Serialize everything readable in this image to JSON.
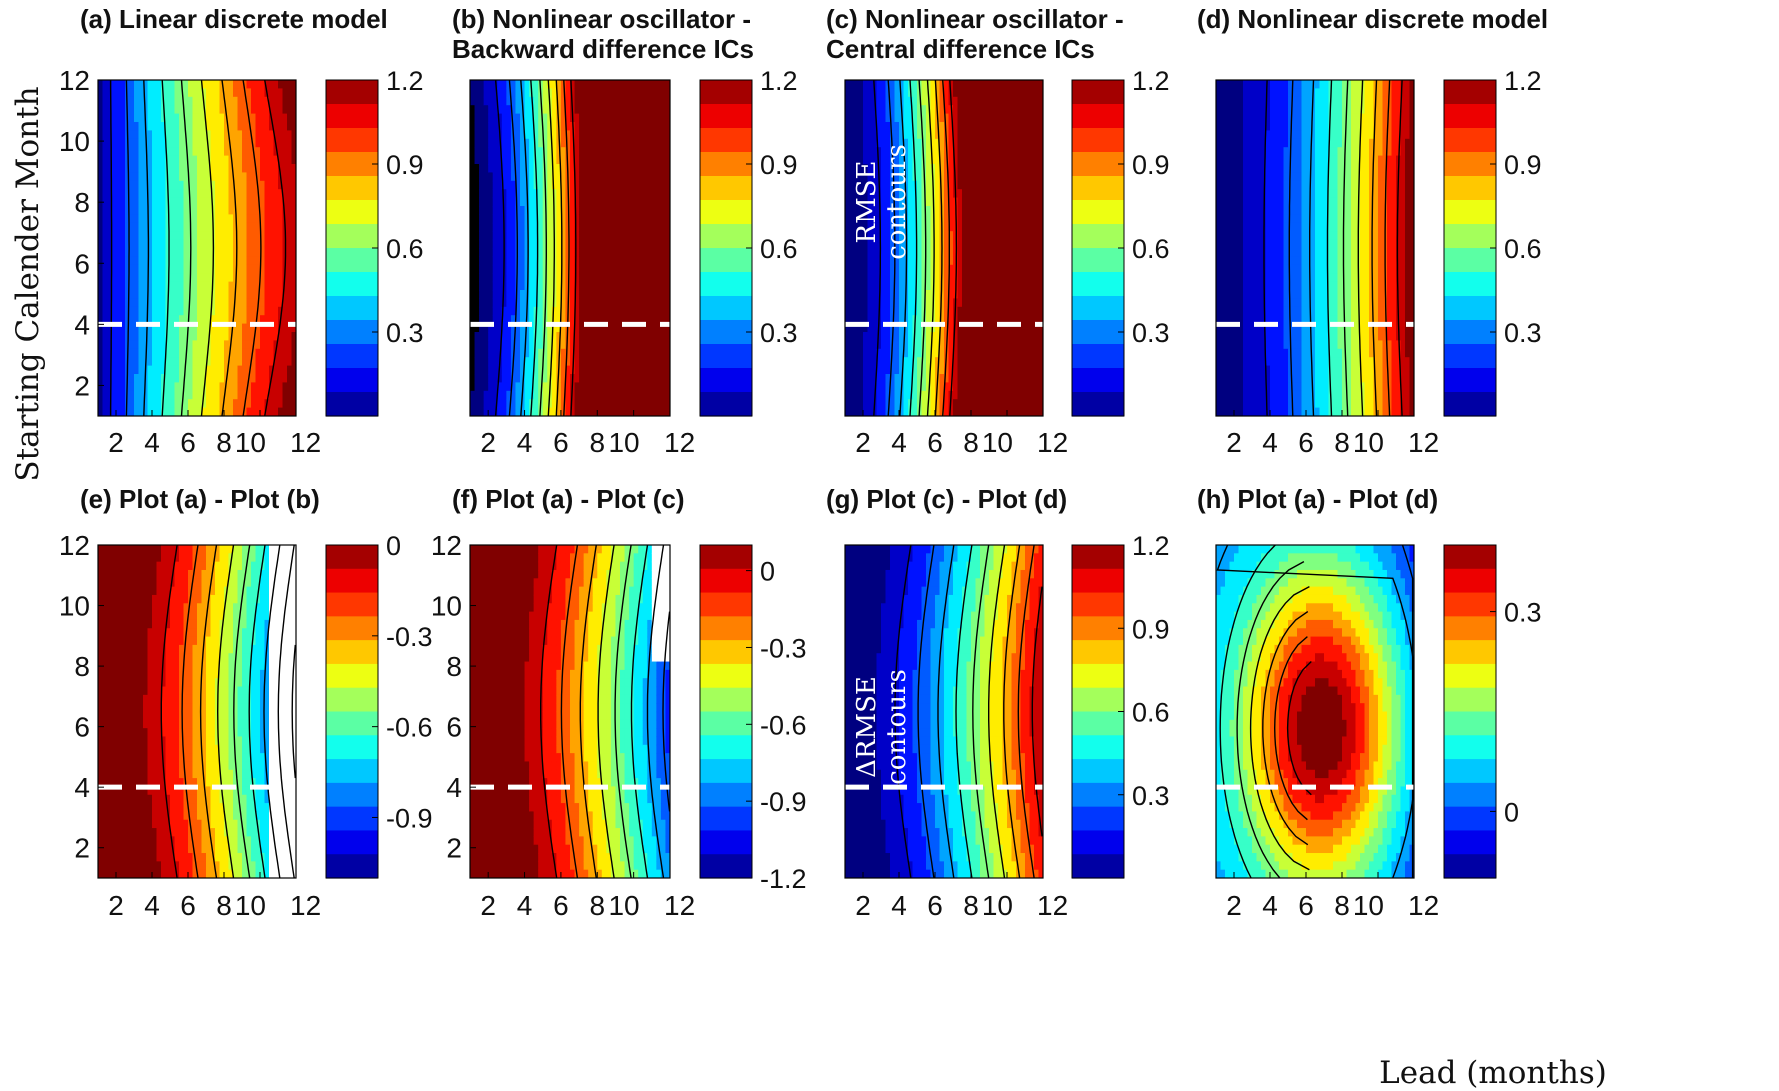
{
  "figure": {
    "ylabel": "Starting Calender Month",
    "xlabel": "Lead (months)"
  },
  "colormap": "jet",
  "chart_data": [
    {
      "id": "a",
      "type": "heatmap",
      "title": "(a) Linear discrete model",
      "x_ticks": [
        "2",
        "4",
        "6",
        "8",
        "10",
        "12"
      ],
      "y_ticks": [
        "2",
        "4",
        "6",
        "8",
        "10",
        "12"
      ],
      "xlim": [
        1,
        12
      ],
      "ylim": [
        1,
        12
      ],
      "colorbar": {
        "range": [
          0,
          1.2
        ],
        "ticks": [
          "1.2",
          "0.9",
          "0.6",
          "0.3"
        ]
      },
      "dashed_line_month": 4
    },
    {
      "id": "b",
      "type": "heatmap",
      "title": "(b) Nonlinear oscillator - Backward difference ICs",
      "x_ticks": [
        "2",
        "4",
        "6",
        "8",
        "10",
        "12"
      ],
      "y_ticks": [],
      "xlim": [
        1,
        12
      ],
      "ylim": [
        1,
        12
      ],
      "colorbar": {
        "range": [
          0,
          1.2
        ],
        "ticks": [
          "1.2",
          "0.9",
          "0.6",
          "0.3"
        ]
      },
      "dashed_line_month": 4
    },
    {
      "id": "c",
      "type": "heatmap",
      "title": "(c) Nonlinear oscillator - Central difference ICs",
      "x_ticks": [
        "2",
        "4",
        "6",
        "8",
        "10",
        "12"
      ],
      "y_ticks": [],
      "xlim": [
        1,
        12
      ],
      "ylim": [
        1,
        12
      ],
      "colorbar": {
        "range": [
          0,
          1.2
        ],
        "ticks": [
          "1.2",
          "0.9",
          "0.6",
          "0.3"
        ]
      },
      "dashed_line_month": 4,
      "annotation": [
        "RMSE",
        "contours"
      ]
    },
    {
      "id": "d",
      "type": "heatmap",
      "title": "(d) Nonlinear discrete model",
      "x_ticks": [
        "2",
        "4",
        "6",
        "8",
        "10",
        "12"
      ],
      "y_ticks": [],
      "xlim": [
        1,
        12
      ],
      "ylim": [
        1,
        12
      ],
      "colorbar": {
        "range": [
          0,
          1.2
        ],
        "ticks": [
          "1.2",
          "0.9",
          "0.6",
          "0.3"
        ]
      },
      "dashed_line_month": 4
    },
    {
      "id": "e",
      "type": "heatmap",
      "title": "(e) Plot (a) - Plot (b)",
      "x_ticks": [
        "2",
        "4",
        "6",
        "8",
        "10",
        "12"
      ],
      "y_ticks": [
        "2",
        "4",
        "6",
        "8",
        "10",
        "12"
      ],
      "xlim": [
        1,
        12
      ],
      "ylim": [
        1,
        12
      ],
      "colorbar": {
        "range": [
          -1.1,
          0
        ],
        "ticks": [
          "0",
          "-0.3",
          "-0.6",
          "-0.9"
        ]
      },
      "dashed_line_month": 4
    },
    {
      "id": "f",
      "type": "heatmap",
      "title": "(f) Plot (a) - Plot (c)",
      "x_ticks": [
        "2",
        "4",
        "6",
        "8",
        "10",
        "12"
      ],
      "y_ticks": [
        "2",
        "4",
        "6",
        "8",
        "10",
        "12"
      ],
      "xlim": [
        1,
        12
      ],
      "ylim": [
        1,
        12
      ],
      "colorbar": {
        "range": [
          -1.2,
          0.1
        ],
        "ticks": [
          "0",
          "-0.3",
          "-0.6",
          "-0.9",
          "-1.2"
        ]
      },
      "dashed_line_month": 4
    },
    {
      "id": "g",
      "type": "heatmap",
      "title": "(g) Plot (c) - Plot (d)",
      "x_ticks": [
        "2",
        "4",
        "6",
        "8",
        "10",
        "12"
      ],
      "y_ticks": [],
      "xlim": [
        1,
        12
      ],
      "ylim": [
        1,
        12
      ],
      "colorbar": {
        "range": [
          0,
          1.2
        ],
        "ticks": [
          "1.2",
          "0.9",
          "0.6",
          "0.3"
        ]
      },
      "dashed_line_month": 4,
      "annotation": [
        "ΔRMSE",
        "contours"
      ]
    },
    {
      "id": "h",
      "type": "heatmap",
      "title": "(h) Plot (a) - Plot (d)",
      "x_ticks": [
        "2",
        "4",
        "6",
        "8",
        "10",
        "12"
      ],
      "y_ticks": [],
      "xlim": [
        1,
        12
      ],
      "ylim": [
        1,
        12
      ],
      "colorbar": {
        "range": [
          -0.1,
          0.4
        ],
        "ticks": [
          "0.3",
          "0"
        ]
      },
      "dashed_line_month": 4
    }
  ]
}
